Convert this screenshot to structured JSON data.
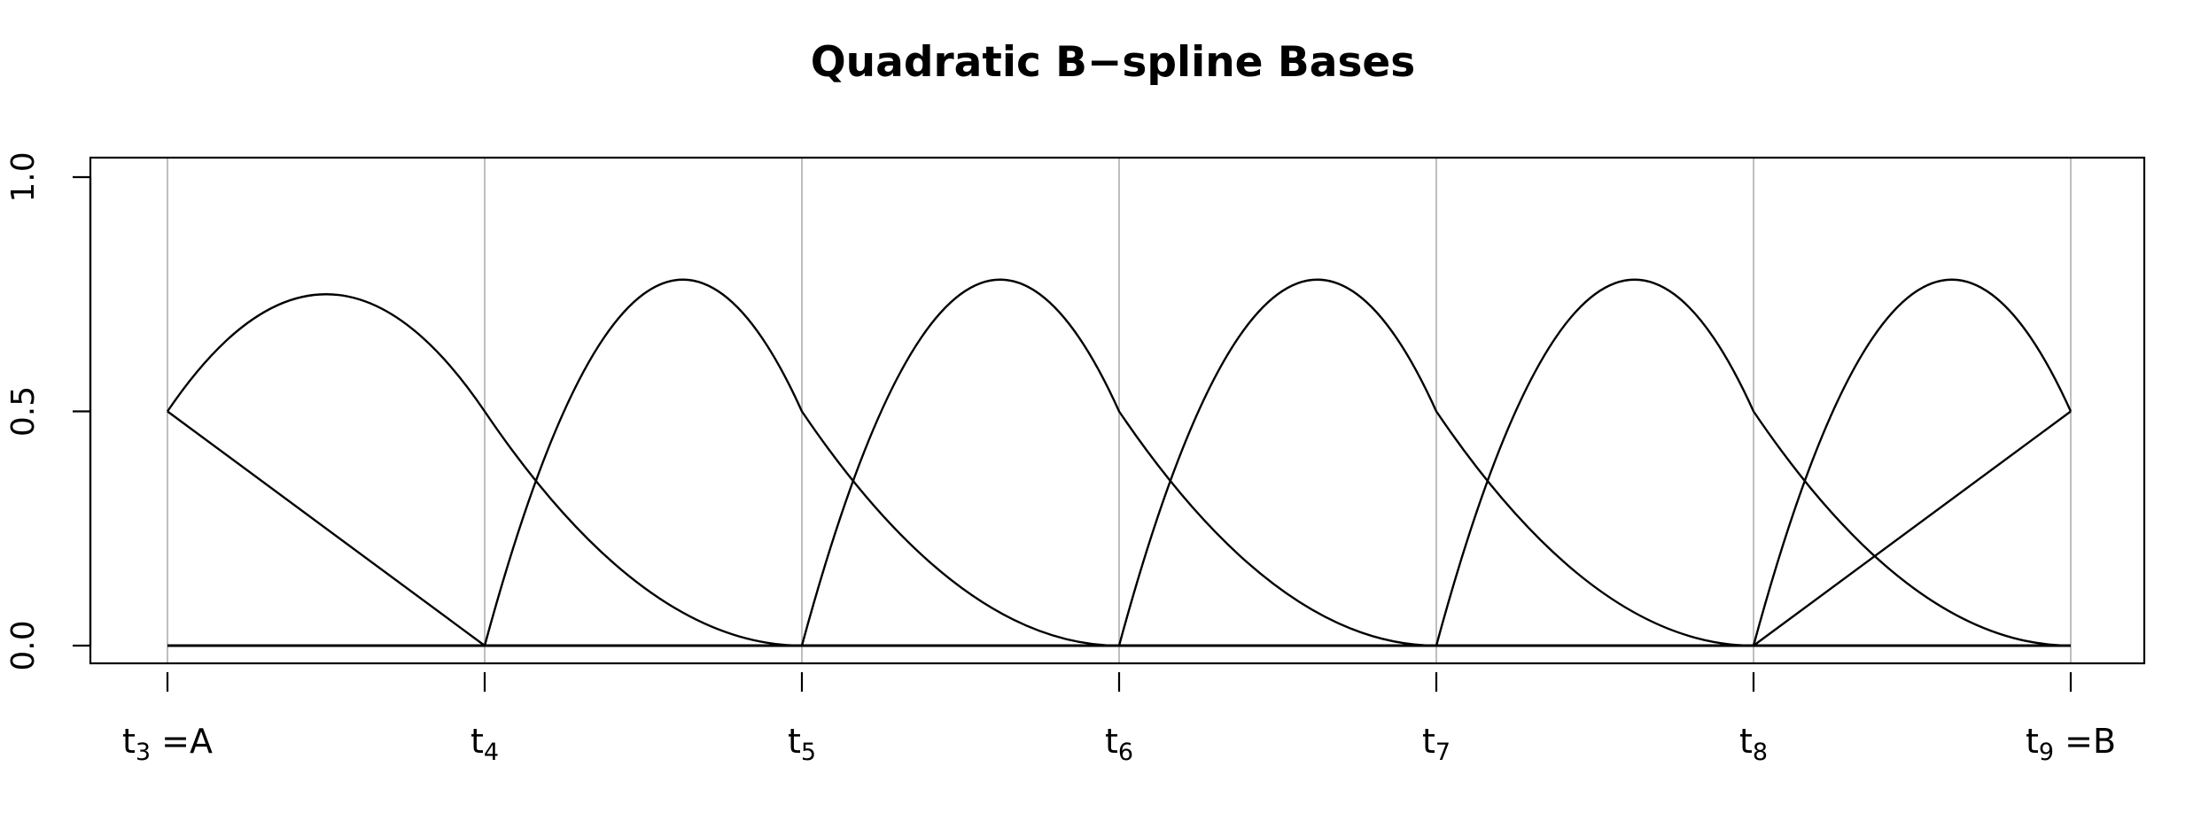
{
  "chart_data": {
    "type": "line",
    "title": "Quadratic B−spline Bases",
    "xlabel": "",
    "ylabel": "",
    "ylim": [
      0.0,
      1.0
    ],
    "yticks": [
      {
        "value": 0.0,
        "label": "0.0"
      },
      {
        "value": 0.5,
        "label": "0.5"
      },
      {
        "value": 1.0,
        "label": "1.0"
      }
    ],
    "x": [
      3,
      4,
      5,
      6,
      7,
      8,
      9
    ],
    "xlim": [
      3,
      9
    ],
    "xticks": [
      {
        "value": 3,
        "base": "t",
        "sub": "3",
        "suffix": " =A"
      },
      {
        "value": 4,
        "base": "t",
        "sub": "4",
        "suffix": ""
      },
      {
        "value": 5,
        "base": "t",
        "sub": "5",
        "suffix": ""
      },
      {
        "value": 6,
        "base": "t",
        "sub": "6",
        "suffix": ""
      },
      {
        "value": 7,
        "base": "t",
        "sub": "7",
        "suffix": ""
      },
      {
        "value": 8,
        "base": "t",
        "sub": "8",
        "suffix": ""
      },
      {
        "value": 9,
        "base": "t",
        "sub": "9",
        "suffix": " =B"
      }
    ],
    "vertical_gridlines_at_knots": true,
    "gridline_color": "#bebebe",
    "line_color": "#000000",
    "series": [
      {
        "x": [
          3,
          4,
          5,
          6,
          7,
          8,
          9
        ],
        "values": [
          0.5,
          0,
          0,
          0,
          0,
          0,
          0
        ]
      },
      {
        "x": [
          3,
          3.5,
          4,
          4.5,
          5,
          6,
          7,
          8,
          9
        ],
        "values": [
          0.5,
          0.75,
          0.5,
          0.125,
          0,
          0,
          0,
          0,
          0
        ]
      },
      {
        "x": [
          3,
          4,
          4.5,
          5,
          5.5,
          6,
          7,
          8,
          9
        ],
        "values": [
          0,
          0,
          0.75,
          0.5,
          0.125,
          0,
          0,
          0,
          0
        ]
      },
      {
        "x": [
          3,
          4,
          5,
          5.5,
          6,
          6.5,
          7,
          8,
          9
        ],
        "values": [
          0,
          0,
          0,
          0.75,
          0.5,
          0.125,
          0,
          0,
          0
        ]
      },
      {
        "x": [
          3,
          4,
          5,
          6,
          6.5,
          7,
          7.5,
          8,
          9
        ],
        "values": [
          0,
          0,
          0,
          0,
          0.75,
          0.5,
          0.125,
          0,
          0
        ]
      },
      {
        "x": [
          3,
          4,
          5,
          6,
          7,
          7.5,
          8,
          8.5,
          9
        ],
        "values": [
          0,
          0,
          0,
          0,
          0,
          0.75,
          0.5,
          0.125,
          0
        ]
      },
      {
        "x": [
          3,
          4,
          5,
          6,
          7,
          8,
          8.5,
          9
        ],
        "values": [
          0,
          0,
          0,
          0,
          0,
          0,
          0.75,
          0.5
        ]
      },
      {
        "x": [
          3,
          4,
          5,
          6,
          7,
          8,
          9
        ],
        "values": [
          0,
          0,
          0,
          0,
          0,
          0,
          0.5
        ]
      }
    ]
  }
}
